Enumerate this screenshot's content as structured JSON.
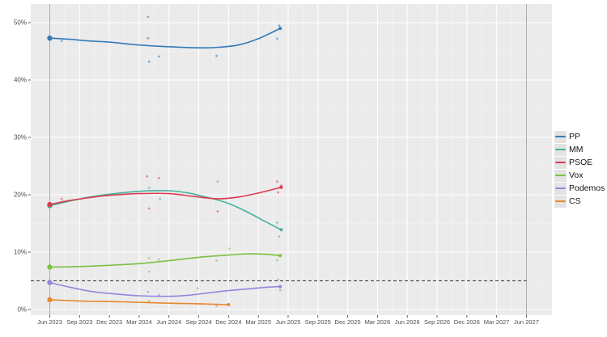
{
  "chart_data": {
    "type": "scatter-line-poll-tracker",
    "title": "",
    "x_unit": "months_since_jun_2023",
    "x_axis": {
      "labels": [
        "Jun 2023",
        "Sep 2023",
        "Dec 2023",
        "Mar 2024",
        "Jun 2024",
        "Sep 2024",
        "Dec 2024",
        "Mar 2025",
        "Jun 2025",
        "Sep 2025",
        "Dec 2025",
        "Mar 2026",
        "Jun 2026",
        "Sep 2026",
        "Dec 2026",
        "Mar 2027",
        "Jun 2027"
      ],
      "months_per_tick": 3,
      "range_months": [
        0,
        48
      ]
    },
    "y_axis": {
      "ticks": [
        "0%",
        "10%",
        "20%",
        "30%",
        "40%",
        "50%"
      ],
      "tick_values": [
        0,
        10,
        20,
        30,
        40,
        50
      ],
      "range_pct": [
        0,
        53
      ]
    },
    "threshold_line": {
      "value_pct": 5,
      "style": "dashed",
      "color": "#333333"
    },
    "event_lines": [
      {
        "label": "Jun 2023",
        "month": 0
      },
      {
        "label": "Jun 2027",
        "month": 48
      }
    ],
    "grid": {
      "panel_bg": "#ebebeb",
      "major": "#ffffff",
      "minor": "#f7f7f7"
    },
    "series": [
      {
        "name": "PP",
        "color": "#337ab7",
        "election_result_pct": 47.3,
        "trend": [
          [
            0,
            47.3
          ],
          [
            2,
            47.1
          ],
          [
            4,
            46.8
          ],
          [
            6,
            46.6
          ],
          [
            9,
            46.1
          ],
          [
            12,
            45.8
          ],
          [
            15,
            45.6
          ],
          [
            17,
            45.7
          ],
          [
            19,
            46.1
          ],
          [
            21,
            47.2
          ],
          [
            23.2,
            49.0
          ]
        ],
        "points": [
          [
            1.2,
            46.8
          ],
          [
            9.9,
            51.0
          ],
          [
            9.9,
            47.3
          ],
          [
            10.0,
            43.2
          ],
          [
            11.0,
            44.1
          ],
          [
            16.8,
            44.2
          ],
          [
            22.9,
            47.2
          ],
          [
            23.1,
            49.5
          ]
        ]
      },
      {
        "name": "MM",
        "color": "#45b39b",
        "election_result_pct": 18.1,
        "trend": [
          [
            0,
            18.1
          ],
          [
            2,
            18.9
          ],
          [
            4,
            19.6
          ],
          [
            6,
            20.1
          ],
          [
            9,
            20.6
          ],
          [
            12,
            20.7
          ],
          [
            14,
            20.3
          ],
          [
            16,
            19.5
          ],
          [
            18,
            18.5
          ],
          [
            20,
            16.9
          ],
          [
            21.5,
            15.5
          ],
          [
            23.3,
            13.9
          ]
        ],
        "points": [
          [
            1.3,
            18.8
          ],
          [
            10.0,
            21.2
          ],
          [
            11.1,
            19.3
          ],
          [
            16.9,
            22.3
          ],
          [
            22.9,
            15.1
          ],
          [
            23.1,
            12.7
          ]
        ]
      },
      {
        "name": "PSOE",
        "color": "#dc3a4f",
        "election_result_pct": 18.3,
        "trend": [
          [
            0,
            18.3
          ],
          [
            2,
            19.0
          ],
          [
            4,
            19.5
          ],
          [
            6,
            19.9
          ],
          [
            9,
            20.2
          ],
          [
            12,
            20.2
          ],
          [
            15,
            19.6
          ],
          [
            17,
            19.3
          ],
          [
            19,
            19.6
          ],
          [
            21,
            20.3
          ],
          [
            23.3,
            21.3
          ]
        ],
        "points": [
          [
            1.2,
            19.3
          ],
          [
            9.8,
            23.2
          ],
          [
            11.0,
            22.9
          ],
          [
            10.0,
            17.6
          ],
          [
            16.9,
            17.1
          ],
          [
            22.9,
            22.3
          ],
          [
            23.3,
            21.6
          ],
          [
            23.0,
            20.4
          ]
        ]
      },
      {
        "name": "Vox",
        "color": "#7cc140",
        "election_result_pct": 7.4,
        "trend": [
          [
            0,
            7.4
          ],
          [
            3,
            7.5
          ],
          [
            6,
            7.7
          ],
          [
            9,
            8.0
          ],
          [
            12,
            8.5
          ],
          [
            15,
            9.1
          ],
          [
            18,
            9.5
          ],
          [
            20,
            9.7
          ],
          [
            22,
            9.6
          ],
          [
            23.2,
            9.4
          ]
        ],
        "points": [
          [
            10.0,
            9.0
          ],
          [
            11.0,
            8.7
          ],
          [
            10.0,
            6.6
          ],
          [
            18.1,
            10.6
          ],
          [
            16.8,
            8.5
          ],
          [
            23.1,
            9.4
          ],
          [
            22.9,
            8.6
          ]
        ]
      },
      {
        "name": "Podemos",
        "color": "#9187dc",
        "election_result_pct": 4.7,
        "trend": [
          [
            0,
            4.7
          ],
          [
            2,
            3.9
          ],
          [
            4,
            3.2
          ],
          [
            6,
            2.8
          ],
          [
            9,
            2.4
          ],
          [
            12,
            2.3
          ],
          [
            14,
            2.5
          ],
          [
            16,
            2.9
          ],
          [
            18,
            3.3
          ],
          [
            20,
            3.6
          ],
          [
            22,
            3.9
          ],
          [
            23.2,
            4.0
          ]
        ],
        "points": [
          [
            9.9,
            3.1
          ],
          [
            11.0,
            2.5
          ],
          [
            14.9,
            3.7
          ],
          [
            23.0,
            5.2
          ],
          [
            23.2,
            3.4
          ]
        ]
      },
      {
        "name": "CS",
        "color": "#e8882f",
        "election_result_pct": 1.7,
        "trend": [
          [
            0,
            1.7
          ],
          [
            3,
            1.5
          ],
          [
            6,
            1.4
          ],
          [
            9,
            1.25
          ],
          [
            12,
            1.1
          ],
          [
            15,
            1.0
          ],
          [
            18,
            0.85
          ]
        ],
        "points": [
          [
            10.0,
            1.5
          ],
          [
            16.8,
            0.6
          ]
        ]
      }
    ],
    "legend": {
      "position": "right",
      "labels": [
        "PP",
        "MM",
        "PSOE",
        "Vox",
        "Podemos",
        "CS"
      ]
    }
  }
}
